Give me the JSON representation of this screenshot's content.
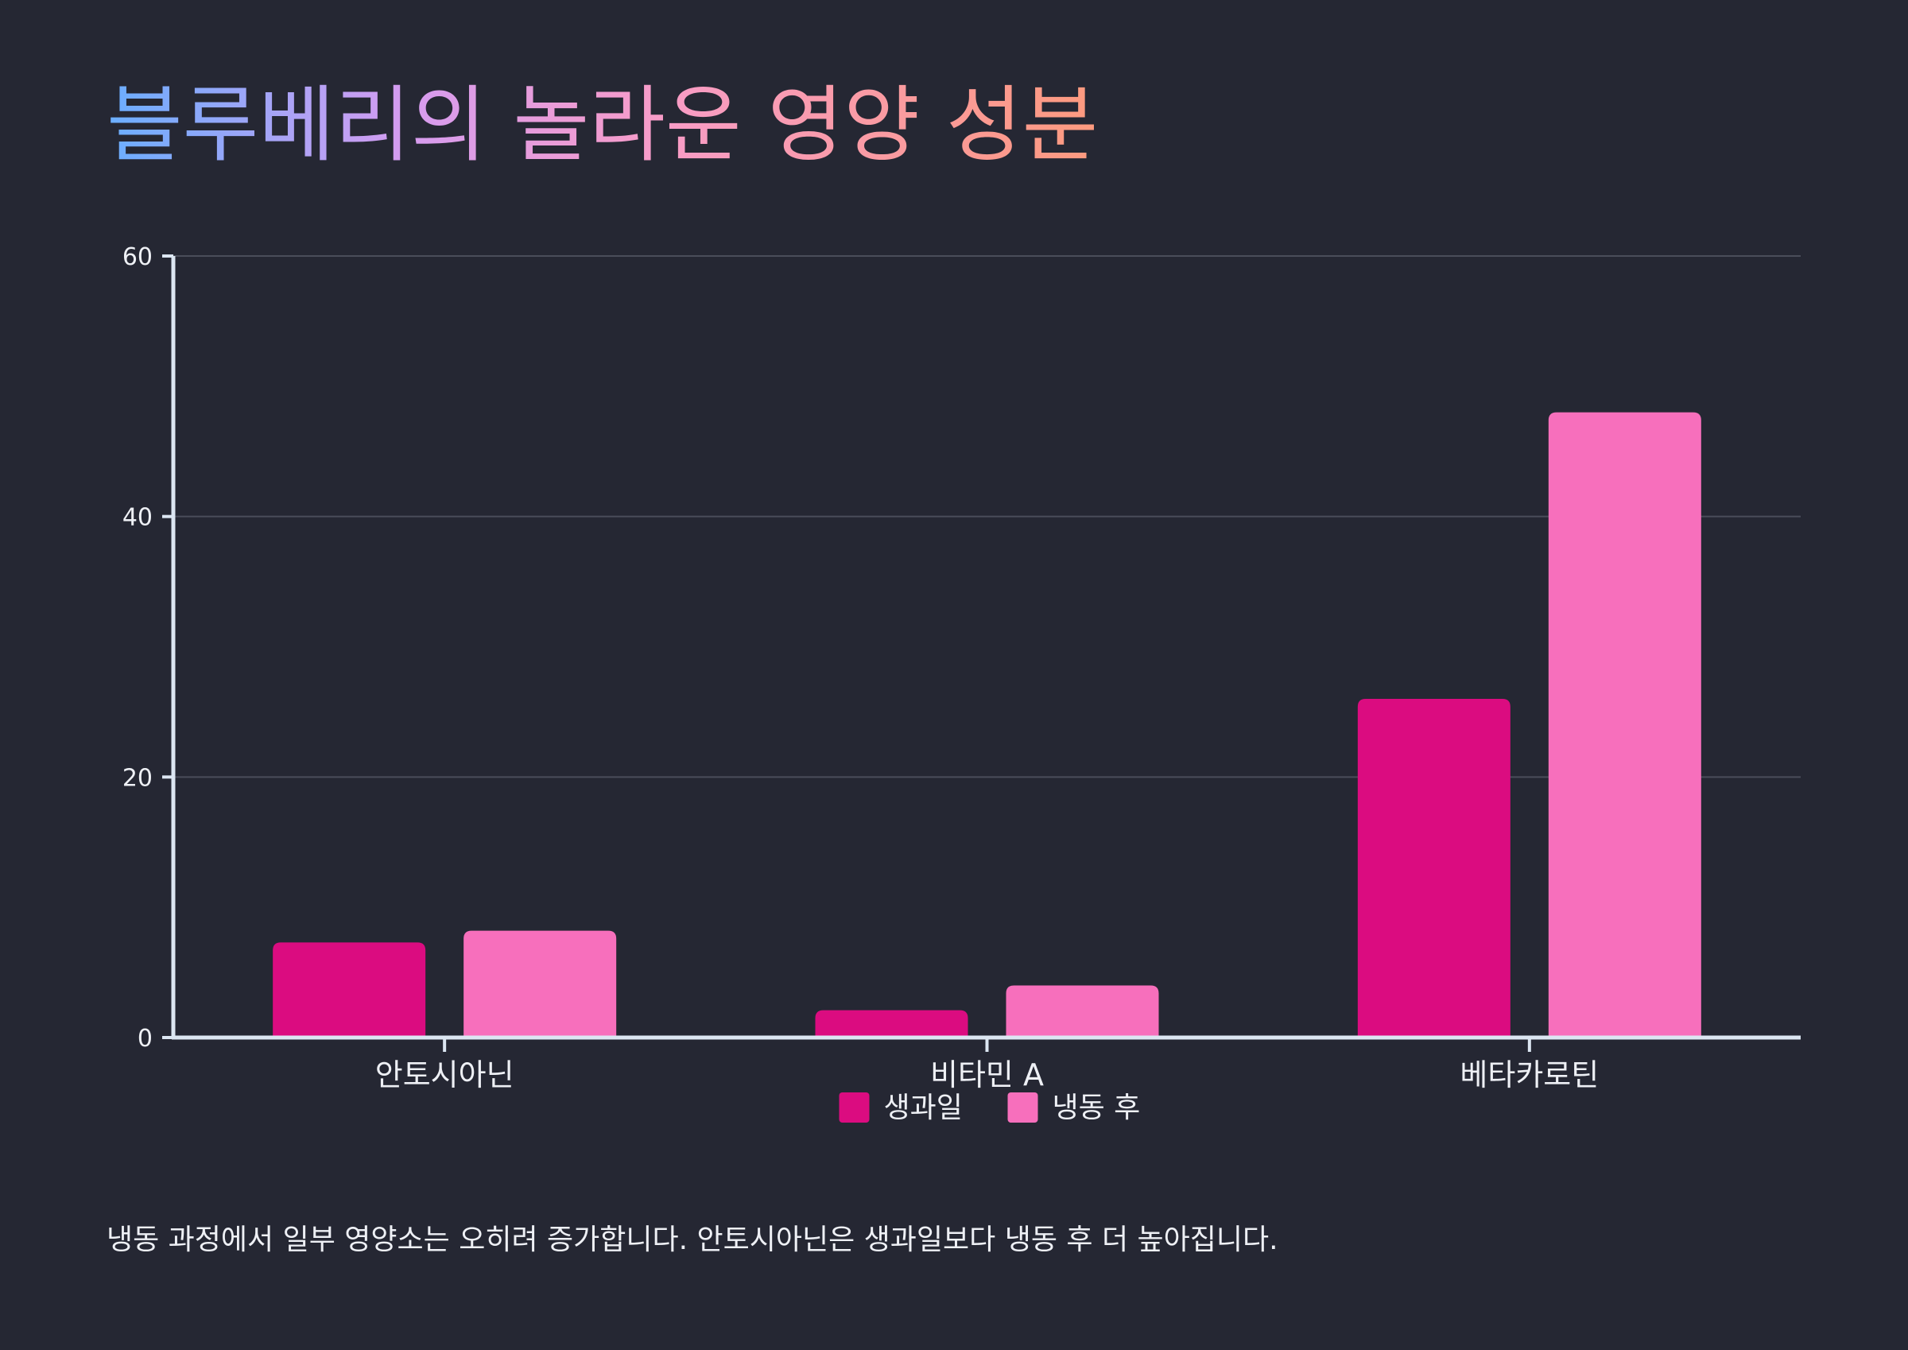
{
  "title": "블루베리의 놀라운 영양 성분",
  "caption": "냉동 과정에서 일부 영양소는 오히려 증가합니다. 안토시아닌은 생과일보다 냉동 후 더 높아집니다.",
  "colors": {
    "background": "#252733",
    "series_fresh": "#db0c80",
    "series_frozen": "#f76fbc",
    "axis": "#dce6f2",
    "grid": "#4a4d5a",
    "text": "#eef0f5"
  },
  "chart_data": {
    "type": "bar",
    "categories": [
      "안토시아닌",
      "비타민 A",
      "베타카로틴"
    ],
    "series": [
      {
        "name": "생과일",
        "values": [
          7.3,
          2.1,
          26
        ],
        "color": "#db0c80"
      },
      {
        "name": "냉동 후",
        "values": [
          8.2,
          4.0,
          48
        ],
        "color": "#f76fbc"
      }
    ],
    "ylim": [
      0,
      60
    ],
    "yticks": [
      0,
      20,
      40,
      60
    ],
    "grid": true,
    "legend_position": "bottom-center"
  }
}
